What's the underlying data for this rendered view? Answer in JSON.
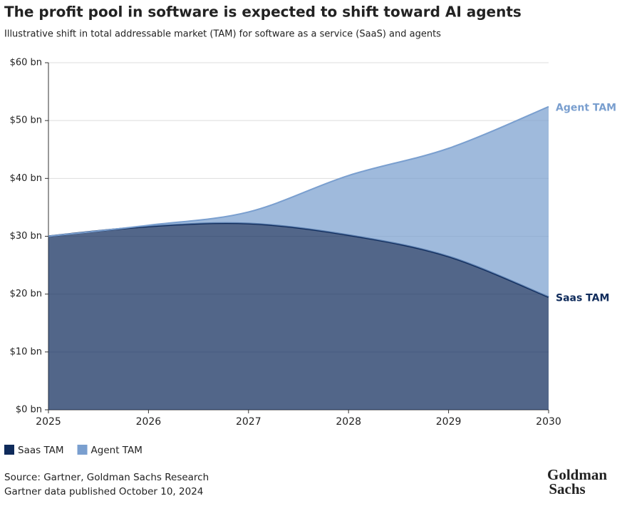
{
  "chart_data": {
    "type": "stacked-area",
    "title": "The profit pool in software is expected to shift toward AI agents",
    "subtitle": "Illustrative shift in total addressable market (TAM) for software as a service (SaaS) and agents",
    "x": [
      2025,
      2026,
      2027,
      2028,
      2029,
      2030
    ],
    "xlim": [
      2025,
      2030
    ],
    "xticks": [
      2025,
      2026,
      2027,
      2028,
      2029,
      2030
    ],
    "ylim": [
      0,
      60
    ],
    "yticks": [
      {
        "value": 0,
        "label": "$0 bn"
      },
      {
        "value": 10,
        "label": "$10 bn"
      },
      {
        "value": 20,
        "label": "$20 bn"
      },
      {
        "value": 30,
        "label": "$30 bn"
      },
      {
        "value": 40,
        "label": "$40 bn"
      },
      {
        "value": 50,
        "label": "$50 bn"
      },
      {
        "value": 60,
        "label": "$60 bn"
      }
    ],
    "grid": true,
    "series": [
      {
        "name": "Saas TAM",
        "color": "#0f2b5b",
        "values": [
          30,
          31.7,
          32.2,
          30.2,
          26.5,
          19.5
        ]
      },
      {
        "name": "Agent TAM",
        "color": "#7a9fcf",
        "values": [
          0,
          0.2,
          2.0,
          10.3,
          18.7,
          32.9
        ]
      }
    ],
    "legend": "bottom-left",
    "source": [
      "Source: Gartner, Goldman Sachs Research",
      "Gartner data published October 10, 2024"
    ],
    "logo": [
      "Goldman",
      "Sachs"
    ]
  }
}
